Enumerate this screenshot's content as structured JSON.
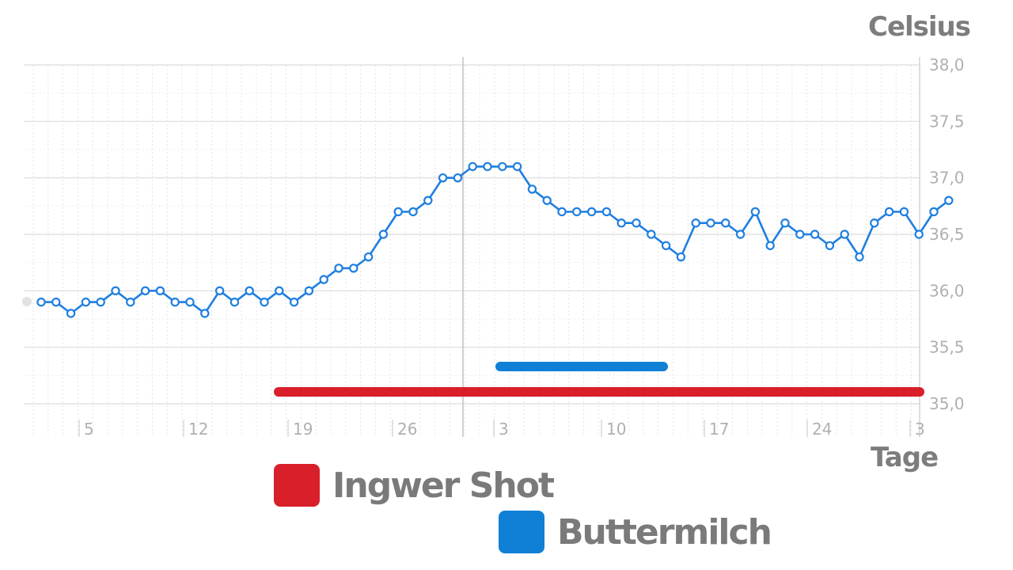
{
  "chart_data": {
    "type": "line",
    "ylabel": "Celsius",
    "xlabel": "Tage",
    "ylim": [
      35.0,
      38.0
    ],
    "yticks": [
      "35,0",
      "35,5",
      "36,0",
      "36,5",
      "37,0",
      "37,5",
      "38,0"
    ],
    "xticks": [
      "5",
      "12",
      "19",
      "26",
      "3",
      "10",
      "17",
      "24",
      "3"
    ],
    "grid": true,
    "colors": {
      "line": "#1f7fe0",
      "ingwer": "#d81f2a",
      "buttermilch": "#1080d6"
    },
    "series": [
      {
        "values": [
          35.9,
          35.9,
          35.8,
          35.9,
          35.9,
          36.0,
          35.9,
          36.0,
          36.0,
          35.9,
          35.9,
          35.8,
          36.0,
          35.9,
          36.0,
          35.9,
          36.0,
          35.9,
          36.0,
          36.1,
          36.2,
          36.2,
          36.3,
          36.5,
          36.7,
          36.7,
          36.8,
          37.0,
          37.0,
          37.1,
          37.1,
          37.1,
          37.1,
          36.9,
          36.8,
          36.7,
          36.7,
          36.7,
          36.7,
          36.6,
          36.6,
          36.5,
          36.4,
          36.3,
          36.6,
          36.6,
          36.6,
          36.5,
          36.7,
          36.4,
          36.6,
          36.5,
          36.5,
          36.4,
          36.5,
          36.3,
          36.6,
          36.7,
          36.7,
          36.5,
          36.7,
          36.8
        ]
      }
    ]
  },
  "legend": [
    {
      "label": "Ingwer Shot",
      "color": "#d81f2a"
    },
    {
      "label": "Buttermilch",
      "color": "#1080d6"
    }
  ]
}
